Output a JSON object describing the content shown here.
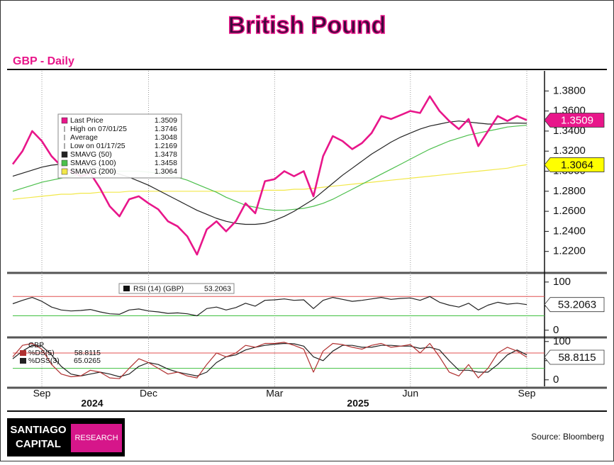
{
  "title": "British Pound",
  "subtitle": "GBP - Daily",
  "source": "Source: Bloomberg",
  "logo": {
    "line1": "SANTIAGO",
    "line2": "CAPITAL",
    "badge": "RESEARCH"
  },
  "chart_data": [
    {
      "type": "line",
      "categories": [
        null,
        null,
        null,
        "Sep",
        null,
        null,
        null,
        null,
        null,
        null,
        null,
        null,
        null,
        null,
        "Dec",
        null,
        null,
        null,
        null,
        null,
        null,
        null,
        null,
        null,
        null,
        null,
        null,
        "Mar",
        null,
        null,
        null,
        null,
        null,
        null,
        null,
        null,
        null,
        null,
        null,
        null,
        null,
        "Jun",
        null,
        null,
        null,
        null,
        null,
        null,
        null,
        null,
        null,
        null,
        null,
        "Sep"
      ],
      "year_labels": [
        "2024",
        "2025"
      ],
      "ylim": [
        1.2,
        1.4
      ],
      "yticks": [
        {
          "value": 1.22,
          "label": "1.2200"
        },
        {
          "value": 1.24,
          "label": "1.2400"
        },
        {
          "value": 1.26,
          "label": "1.2600"
        },
        {
          "value": 1.28,
          "label": "1.2800"
        },
        {
          "value": 1.3,
          "label": "1.3000"
        },
        {
          "value": 1.32,
          "label": "1.3200"
        },
        {
          "value": 1.34,
          "label": "1.3400"
        },
        {
          "value": 1.36,
          "label": "1.3600"
        },
        {
          "value": 1.38,
          "label": "1.3800"
        }
      ],
      "series": [
        {
          "name": "Last Price",
          "color": "#e8168a",
          "tag_fill": "#e8168a",
          "values": [
            1.307,
            1.32,
            1.34,
            1.33,
            1.315,
            1.305,
            1.3,
            1.295,
            1.298,
            1.283,
            1.265,
            1.255,
            1.272,
            1.275,
            1.268,
            1.262,
            1.25,
            1.245,
            1.235,
            1.2169,
            1.242,
            1.25,
            1.24,
            1.25,
            1.268,
            1.258,
            1.29,
            1.292,
            1.3,
            1.295,
            1.3,
            1.275,
            1.315,
            1.335,
            1.33,
            1.322,
            1.328,
            1.338,
            1.355,
            1.352,
            1.356,
            1.36,
            1.358,
            1.3746,
            1.36,
            1.35,
            1.342,
            1.352,
            1.325,
            1.34,
            1.355,
            1.35,
            1.355,
            1.3509
          ]
        },
        {
          "name": "SMAVG (50)",
          "color": "#222222",
          "values": [
            1.295,
            1.298,
            1.301,
            1.304,
            1.306,
            1.307,
            1.307,
            1.306,
            1.305,
            1.303,
            1.3,
            1.297,
            1.294,
            1.29,
            1.286,
            1.281,
            1.276,
            1.271,
            1.266,
            1.261,
            1.257,
            1.253,
            1.25,
            1.248,
            1.247,
            1.247,
            1.248,
            1.251,
            1.255,
            1.26,
            1.266,
            1.272,
            1.28,
            1.288,
            1.296,
            1.303,
            1.31,
            1.317,
            1.323,
            1.329,
            1.334,
            1.338,
            1.342,
            1.345,
            1.347,
            1.349,
            1.35,
            1.349,
            1.348,
            1.347,
            1.347,
            1.348,
            1.348,
            1.3478
          ]
        },
        {
          "name": "SMAVG (100)",
          "color": "#4cbf4c",
          "values": [
            1.28,
            1.283,
            1.286,
            1.289,
            1.291,
            1.293,
            1.295,
            1.297,
            1.298,
            1.299,
            1.3,
            1.3,
            1.3,
            1.3,
            1.299,
            1.298,
            1.296,
            1.294,
            1.291,
            1.287,
            1.283,
            1.279,
            1.274,
            1.27,
            1.266,
            1.264,
            1.262,
            1.261,
            1.261,
            1.262,
            1.263,
            1.265,
            1.268,
            1.272,
            1.277,
            1.282,
            1.287,
            1.292,
            1.297,
            1.302,
            1.307,
            1.312,
            1.317,
            1.322,
            1.326,
            1.33,
            1.333,
            1.336,
            1.338,
            1.34,
            1.342,
            1.344,
            1.345,
            1.3458
          ]
        },
        {
          "name": "SMAVG (200)",
          "color": "#f2e84a",
          "tag_fill": "#ffff00",
          "values": [
            1.272,
            1.273,
            1.274,
            1.275,
            1.276,
            1.277,
            1.277,
            1.278,
            1.278,
            1.279,
            1.279,
            1.279,
            1.28,
            1.28,
            1.28,
            1.28,
            1.28,
            1.28,
            1.28,
            1.28,
            1.28,
            1.28,
            1.28,
            1.28,
            1.28,
            1.28,
            1.281,
            1.281,
            1.281,
            1.282,
            1.282,
            1.283,
            1.284,
            1.285,
            1.286,
            1.287,
            1.288,
            1.289,
            1.29,
            1.291,
            1.292,
            1.293,
            1.294,
            1.295,
            1.296,
            1.297,
            1.298,
            1.299,
            1.3,
            1.301,
            1.302,
            1.303,
            1.305,
            1.3064
          ]
        }
      ],
      "stats": [
        {
          "name": "High on 07/01/25",
          "value": 1.3746
        },
        {
          "name": "Average",
          "value": 1.3048
        },
        {
          "name": "Low on 01/17/25",
          "value": 1.2169
        }
      ]
    },
    {
      "type": "line",
      "ylim": [
        -12,
        116
      ],
      "yticks": [
        0,
        50,
        100
      ],
      "ref_lines": [
        {
          "value": 70,
          "color": "#e05050"
        },
        {
          "value": 30,
          "color": "#40c040"
        }
      ],
      "series": [
        {
          "name": "RSI (14) (GBP)",
          "color": "#222222",
          "tag_fill": "#ffffff",
          "values": [
            55,
            62,
            68,
            60,
            48,
            42,
            40,
            41,
            43,
            38,
            34,
            33,
            42,
            44,
            40,
            38,
            35,
            36,
            34,
            30,
            45,
            48,
            42,
            47,
            56,
            50,
            62,
            63,
            65,
            62,
            63,
            45,
            62,
            68,
            64,
            60,
            62,
            65,
            68,
            64,
            66,
            67,
            62,
            70,
            58,
            52,
            48,
            56,
            42,
            52,
            58,
            54,
            56,
            53.2063
          ]
        }
      ]
    },
    {
      "type": "line",
      "label": "GBP",
      "ylim": [
        -17,
        107
      ],
      "yticks": [
        0,
        50,
        100
      ],
      "ref_lines": [
        {
          "value": 70,
          "color": "#e05050"
        },
        {
          "value": 30,
          "color": "#40c040"
        }
      ],
      "series": [
        {
          "name": "%DS(5)",
          "color": "#b03030",
          "tag_fill": "#ffffff",
          "values": [
            60,
            90,
            95,
            80,
            40,
            15,
            8,
            10,
            25,
            20,
            5,
            3,
            30,
            55,
            45,
            30,
            15,
            20,
            10,
            5,
            40,
            70,
            60,
            70,
            90,
            85,
            95,
            95,
            98,
            90,
            80,
            20,
            75,
            95,
            92,
            85,
            80,
            90,
            95,
            85,
            88,
            92,
            70,
            95,
            60,
            20,
            10,
            40,
            5,
            30,
            70,
            85,
            75,
            58.8115
          ]
        },
        {
          "name": "%DSS(3)",
          "color": "#222222",
          "values": [
            55,
            75,
            90,
            88,
            65,
            35,
            15,
            10,
            15,
            20,
            15,
            8,
            15,
            35,
            45,
            40,
            28,
            20,
            15,
            10,
            20,
            45,
            60,
            65,
            78,
            85,
            90,
            93,
            95,
            94,
            88,
            60,
            50,
            75,
            90,
            90,
            85,
            85,
            90,
            90,
            88,
            88,
            82,
            85,
            78,
            50,
            25,
            25,
            20,
            20,
            40,
            65,
            78,
            65.0265
          ]
        }
      ]
    }
  ]
}
